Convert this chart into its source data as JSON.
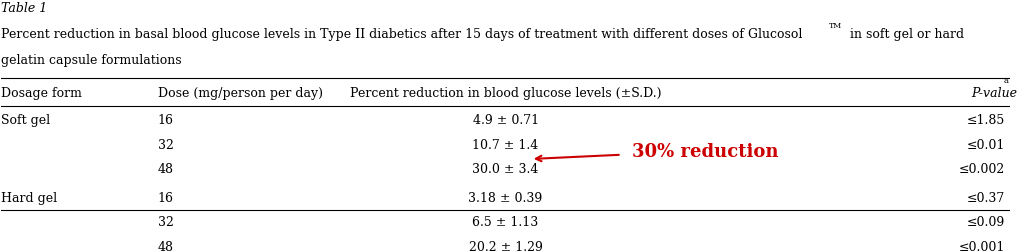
{
  "table_title_line1": "Table 1",
  "table_title_line2": "Percent reduction in basal blood glucose levels in Type II diabetics after 15 days of treatment with different doses of Glucosol",
  "table_title_tm": "TM",
  "table_title_line2b": " in soft gel or hard",
  "table_title_line3": "gelatin capsule formulations",
  "col_headers": [
    "Dosage form",
    "Dose (mg/person per day)",
    "Percent reduction in blood glucose levels (±S.D.)",
    "P-value"
  ],
  "rows": [
    [
      "Soft gel",
      "16",
      "4.9 ± 0.71",
      "≤1.85"
    ],
    [
      "",
      "32",
      "10.7 ± 1.4",
      "≤0.01"
    ],
    [
      "",
      "48",
      "30.0 ± 3.4",
      "≤0.002"
    ],
    [
      "Hard gel",
      "16",
      "3.18 ± 0.39",
      "≤0.37"
    ],
    [
      "",
      "32",
      "6.5 ± 1.13",
      "≤0.09"
    ],
    [
      "",
      "48",
      "20.2 ± 1.29",
      "≤0.001"
    ]
  ],
  "annotation_text": "30% reduction",
  "annotation_color": "#cc0000",
  "background_color": "#ffffff",
  "text_color": "#000000",
  "font_size": 9.0,
  "title_font_size": 9.0
}
